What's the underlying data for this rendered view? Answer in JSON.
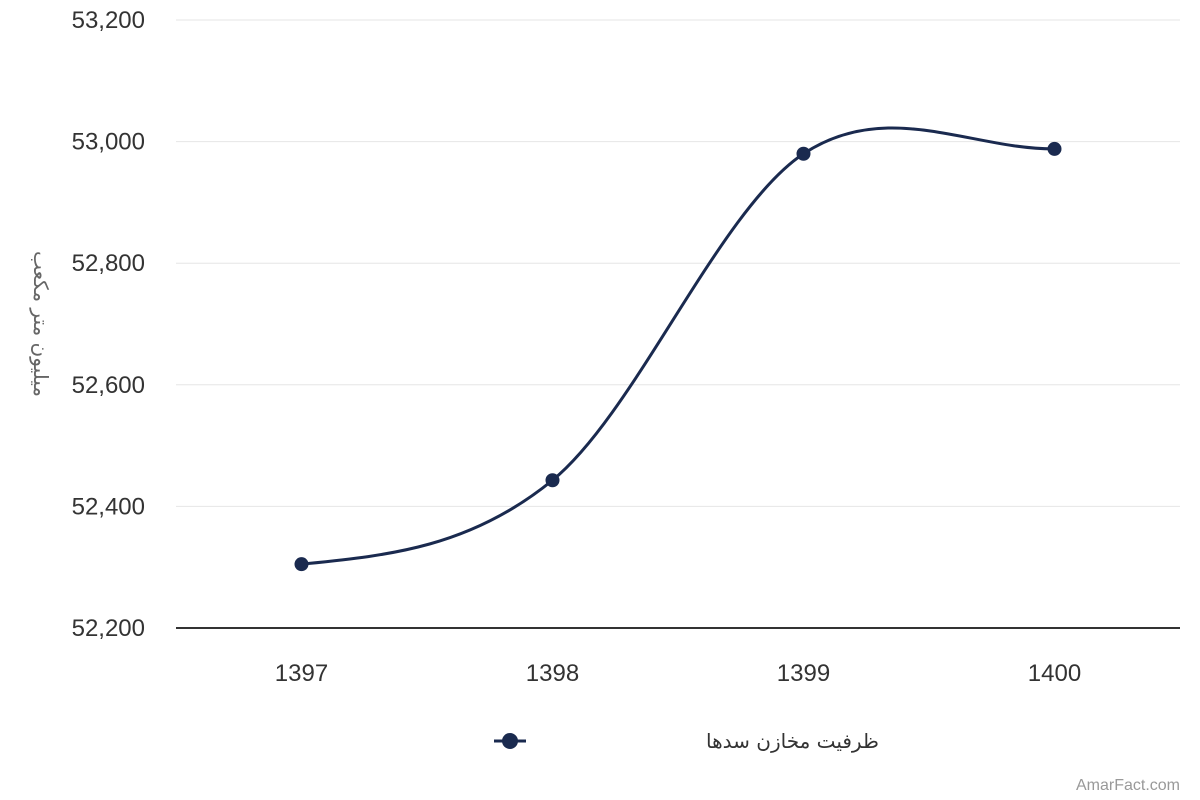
{
  "chart_data": {
    "type": "line",
    "categories": [
      "1397",
      "1398",
      "1399",
      "1400"
    ],
    "series": [
      {
        "name": "ظرفیت مخازن سدها",
        "values": [
          52305,
          52443,
          52980,
          52988
        ]
      }
    ],
    "ylabel": "میلیون متر مکعب",
    "yticks": [
      "52,200",
      "52,400",
      "52,600",
      "52,800",
      "53,000",
      "53,200"
    ],
    "ylim": [
      52200,
      53200
    ],
    "grid": true,
    "legend_position": "bottom-center",
    "smooth": true
  },
  "colors": {
    "series": "#1a2a4f",
    "grid": "#e6e6e6",
    "axis": "#333333"
  },
  "credit": "AmarFact.com"
}
